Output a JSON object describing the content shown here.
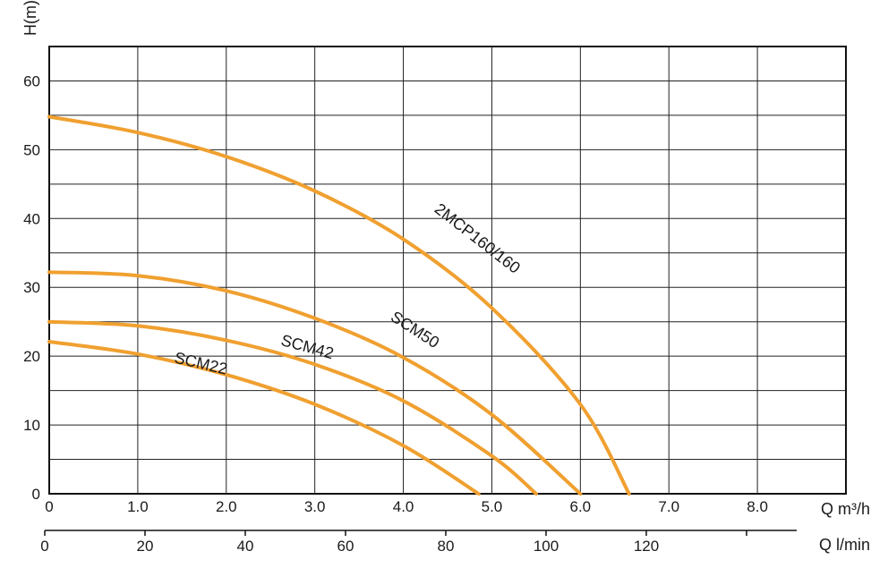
{
  "chart_data": {
    "type": "line",
    "ylabel": "H(m)",
    "xlabel": "Q m³/h",
    "x2label": "Q l/min",
    "xlim": [
      0,
      9.0
    ],
    "ylim": [
      0,
      65
    ],
    "x_ticks": [
      {
        "value": 0,
        "label": "0"
      },
      {
        "value": 1,
        "label": "1.0"
      },
      {
        "value": 2,
        "label": "2.0"
      },
      {
        "value": 3,
        "label": "3.0"
      },
      {
        "value": 4,
        "label": "4.0"
      },
      {
        "value": 5,
        "label": "5.0"
      },
      {
        "value": 6,
        "label": "6.0"
      },
      {
        "value": 7,
        "label": "7.0"
      },
      {
        "value": 8,
        "label": "8.0"
      }
    ],
    "y_ticks": [
      {
        "value": 0,
        "label": "0"
      },
      {
        "value": 10,
        "label": "10"
      },
      {
        "value": 20,
        "label": "20"
      },
      {
        "value": 30,
        "label": "30"
      },
      {
        "value": 40,
        "label": "40"
      },
      {
        "value": 50,
        "label": "50"
      },
      {
        "value": 60,
        "label": "60"
      }
    ],
    "x2_lim": [
      0,
      150
    ],
    "x2_ticks": [
      {
        "value": 0,
        "label": "0"
      },
      {
        "value": 20,
        "label": "20"
      },
      {
        "value": 40,
        "label": "40"
      },
      {
        "value": 60,
        "label": "60"
      },
      {
        "value": 80,
        "label": "80"
      },
      {
        "value": 100,
        "label": "100"
      },
      {
        "value": 120,
        "label": "120"
      },
      {
        "value": 140,
        "label": ""
      }
    ],
    "grid": true,
    "line_color": "#f0a030",
    "series": [
      {
        "name": "2MCP160/160",
        "x": [
          0,
          1,
          2,
          3,
          4,
          5,
          6,
          6.55
        ],
        "y": [
          54.8,
          52.5,
          49,
          44,
          37,
          27,
          13,
          0
        ],
        "label_x": 4.8,
        "label_y": 36.5
      },
      {
        "name": "SCM50",
        "x": [
          0,
          1,
          2,
          3,
          4,
          5,
          6
        ],
        "y": [
          32.2,
          31.7,
          29.5,
          25.5,
          19.8,
          11.5,
          0
        ],
        "label_x": 4.1,
        "label_y": 23.2
      },
      {
        "name": "SCM42",
        "x": [
          0,
          1,
          2,
          3,
          4,
          5,
          5.5
        ],
        "y": [
          25,
          24.4,
          22.3,
          18.8,
          13.5,
          5.5,
          0
        ],
        "label_x": 2.9,
        "label_y": 20.6
      },
      {
        "name": "SCM22",
        "x": [
          0,
          1,
          2,
          3,
          4,
          4.85
        ],
        "y": [
          22.1,
          20.3,
          17.3,
          13,
          7,
          0
        ],
        "label_x": 1.7,
        "label_y": 18.2
      }
    ]
  }
}
